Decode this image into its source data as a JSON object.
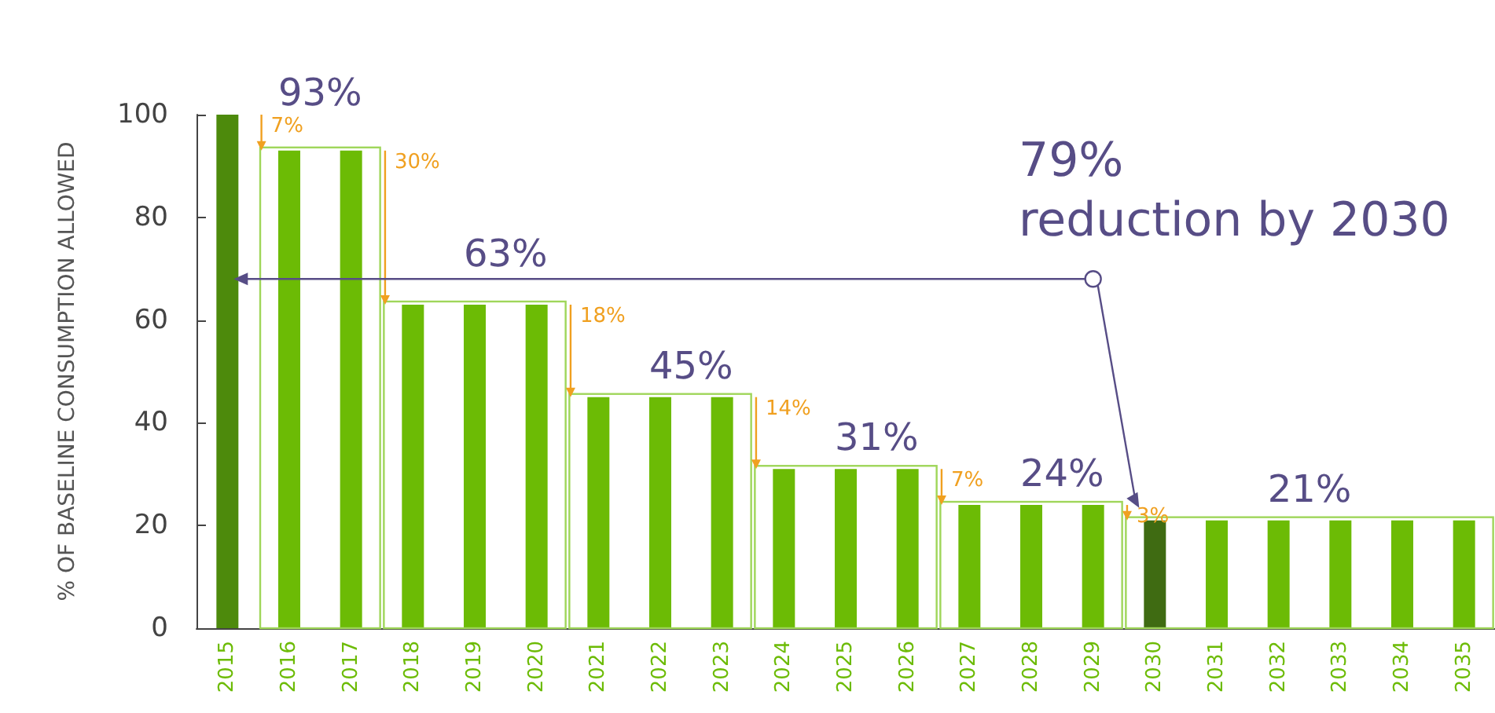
{
  "chart_data": {
    "type": "bar",
    "ylabel": "% OF BASELINE CONSUMPTION ALLOWED",
    "categories": [
      "2015",
      "2016",
      "2017",
      "2018",
      "2019",
      "2020",
      "2021",
      "2022",
      "2023",
      "2024",
      "2025",
      "2026",
      "2027",
      "2028",
      "2029",
      "2030",
      "2031",
      "2032",
      "2033",
      "2034",
      "2035"
    ],
    "values": [
      100,
      93,
      93,
      63,
      63,
      63,
      45,
      45,
      45,
      31,
      31,
      31,
      24,
      24,
      24,
      21,
      21,
      21,
      21,
      21,
      21
    ],
    "colors": [
      "#4d8a0c",
      "#6cbb05",
      "#6cbb05",
      "#6cbb05",
      "#6cbb05",
      "#6cbb05",
      "#6cbb05",
      "#6cbb05",
      "#6cbb05",
      "#6cbb05",
      "#6cbb05",
      "#6cbb05",
      "#6cbb05",
      "#6cbb05",
      "#6cbb05",
      "#3f6b12",
      "#6cbb05",
      "#6cbb05",
      "#6cbb05",
      "#6cbb05",
      "#6cbb05"
    ],
    "ylim": [
      0,
      100
    ],
    "yticks": [
      0,
      20,
      40,
      60,
      80,
      100
    ],
    "grid": false,
    "annotations": [
      {
        "text": "93%",
        "x": "2016",
        "y": 93
      },
      {
        "text": "63%",
        "x": "2019",
        "y": 63
      },
      {
        "text": "45%",
        "x": "2022",
        "y": 45
      },
      {
        "text": "31%",
        "x": "2025",
        "y": 31
      },
      {
        "text": "24%",
        "x": "2028",
        "y": 24
      },
      {
        "text": "21%",
        "x": "2032",
        "y": 21
      },
      "7%",
      "30%",
      "18%",
      "14%",
      "7%",
      "3%",
      "79%\nreduction by 2030"
    ]
  }
}
